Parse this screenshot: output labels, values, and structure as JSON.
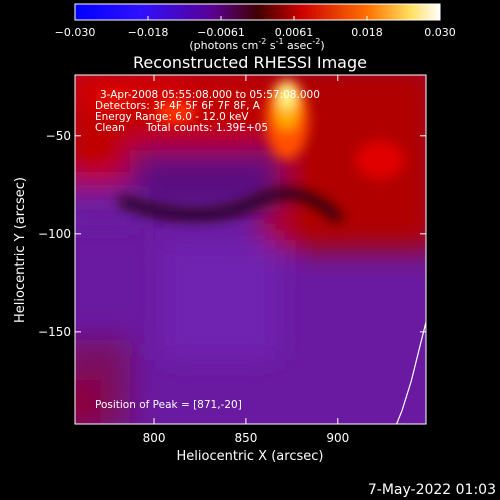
{
  "colorbar": {
    "ticks": [
      "-0.030",
      "-0.018",
      "-0.0061",
      "0.0061",
      "0.018",
      "0.030"
    ],
    "unit_main": "(photons cm",
    "unit_sup1": "-2",
    "unit_mid1": " s",
    "unit_sup2": "-1",
    "unit_mid2": " asec",
    "unit_sup3": "-2",
    "unit_end": ")"
  },
  "info": {
    "line1": "3-Apr-2008 05:55:08.000 to 05:57:08.000",
    "line2": "Detectors: 3F 4F 5F 6F 7F 8F, A",
    "line3": "Energy Range: 6.0 - 12.0 keV",
    "line4_left": "Clean",
    "line4_right": "Total counts: 1.39E+05",
    "peak": "Position of Peak = [871,-20]"
  },
  "footer_date": "7-May-2022 01:03",
  "chart_data": {
    "type": "heatmap",
    "title": "Reconstructed RHESSI Image",
    "xlabel": "Heliocentric X (arcsec)",
    "ylabel": "Heliocentric Y (arcsec)",
    "xlim": [
      757,
      948
    ],
    "ylim": [
      -197,
      -19
    ],
    "xticks": [
      800,
      850,
      900
    ],
    "yticks": [
      -50,
      -100,
      -150
    ],
    "color_range": [
      -0.03,
      0.03
    ],
    "peak_position": [
      871,
      -20
    ],
    "limb_curve": [
      [
        948,
        -145
      ],
      [
        944,
        -160
      ],
      [
        940,
        -175
      ],
      [
        935,
        -190
      ],
      [
        932,
        -197
      ]
    ]
  }
}
